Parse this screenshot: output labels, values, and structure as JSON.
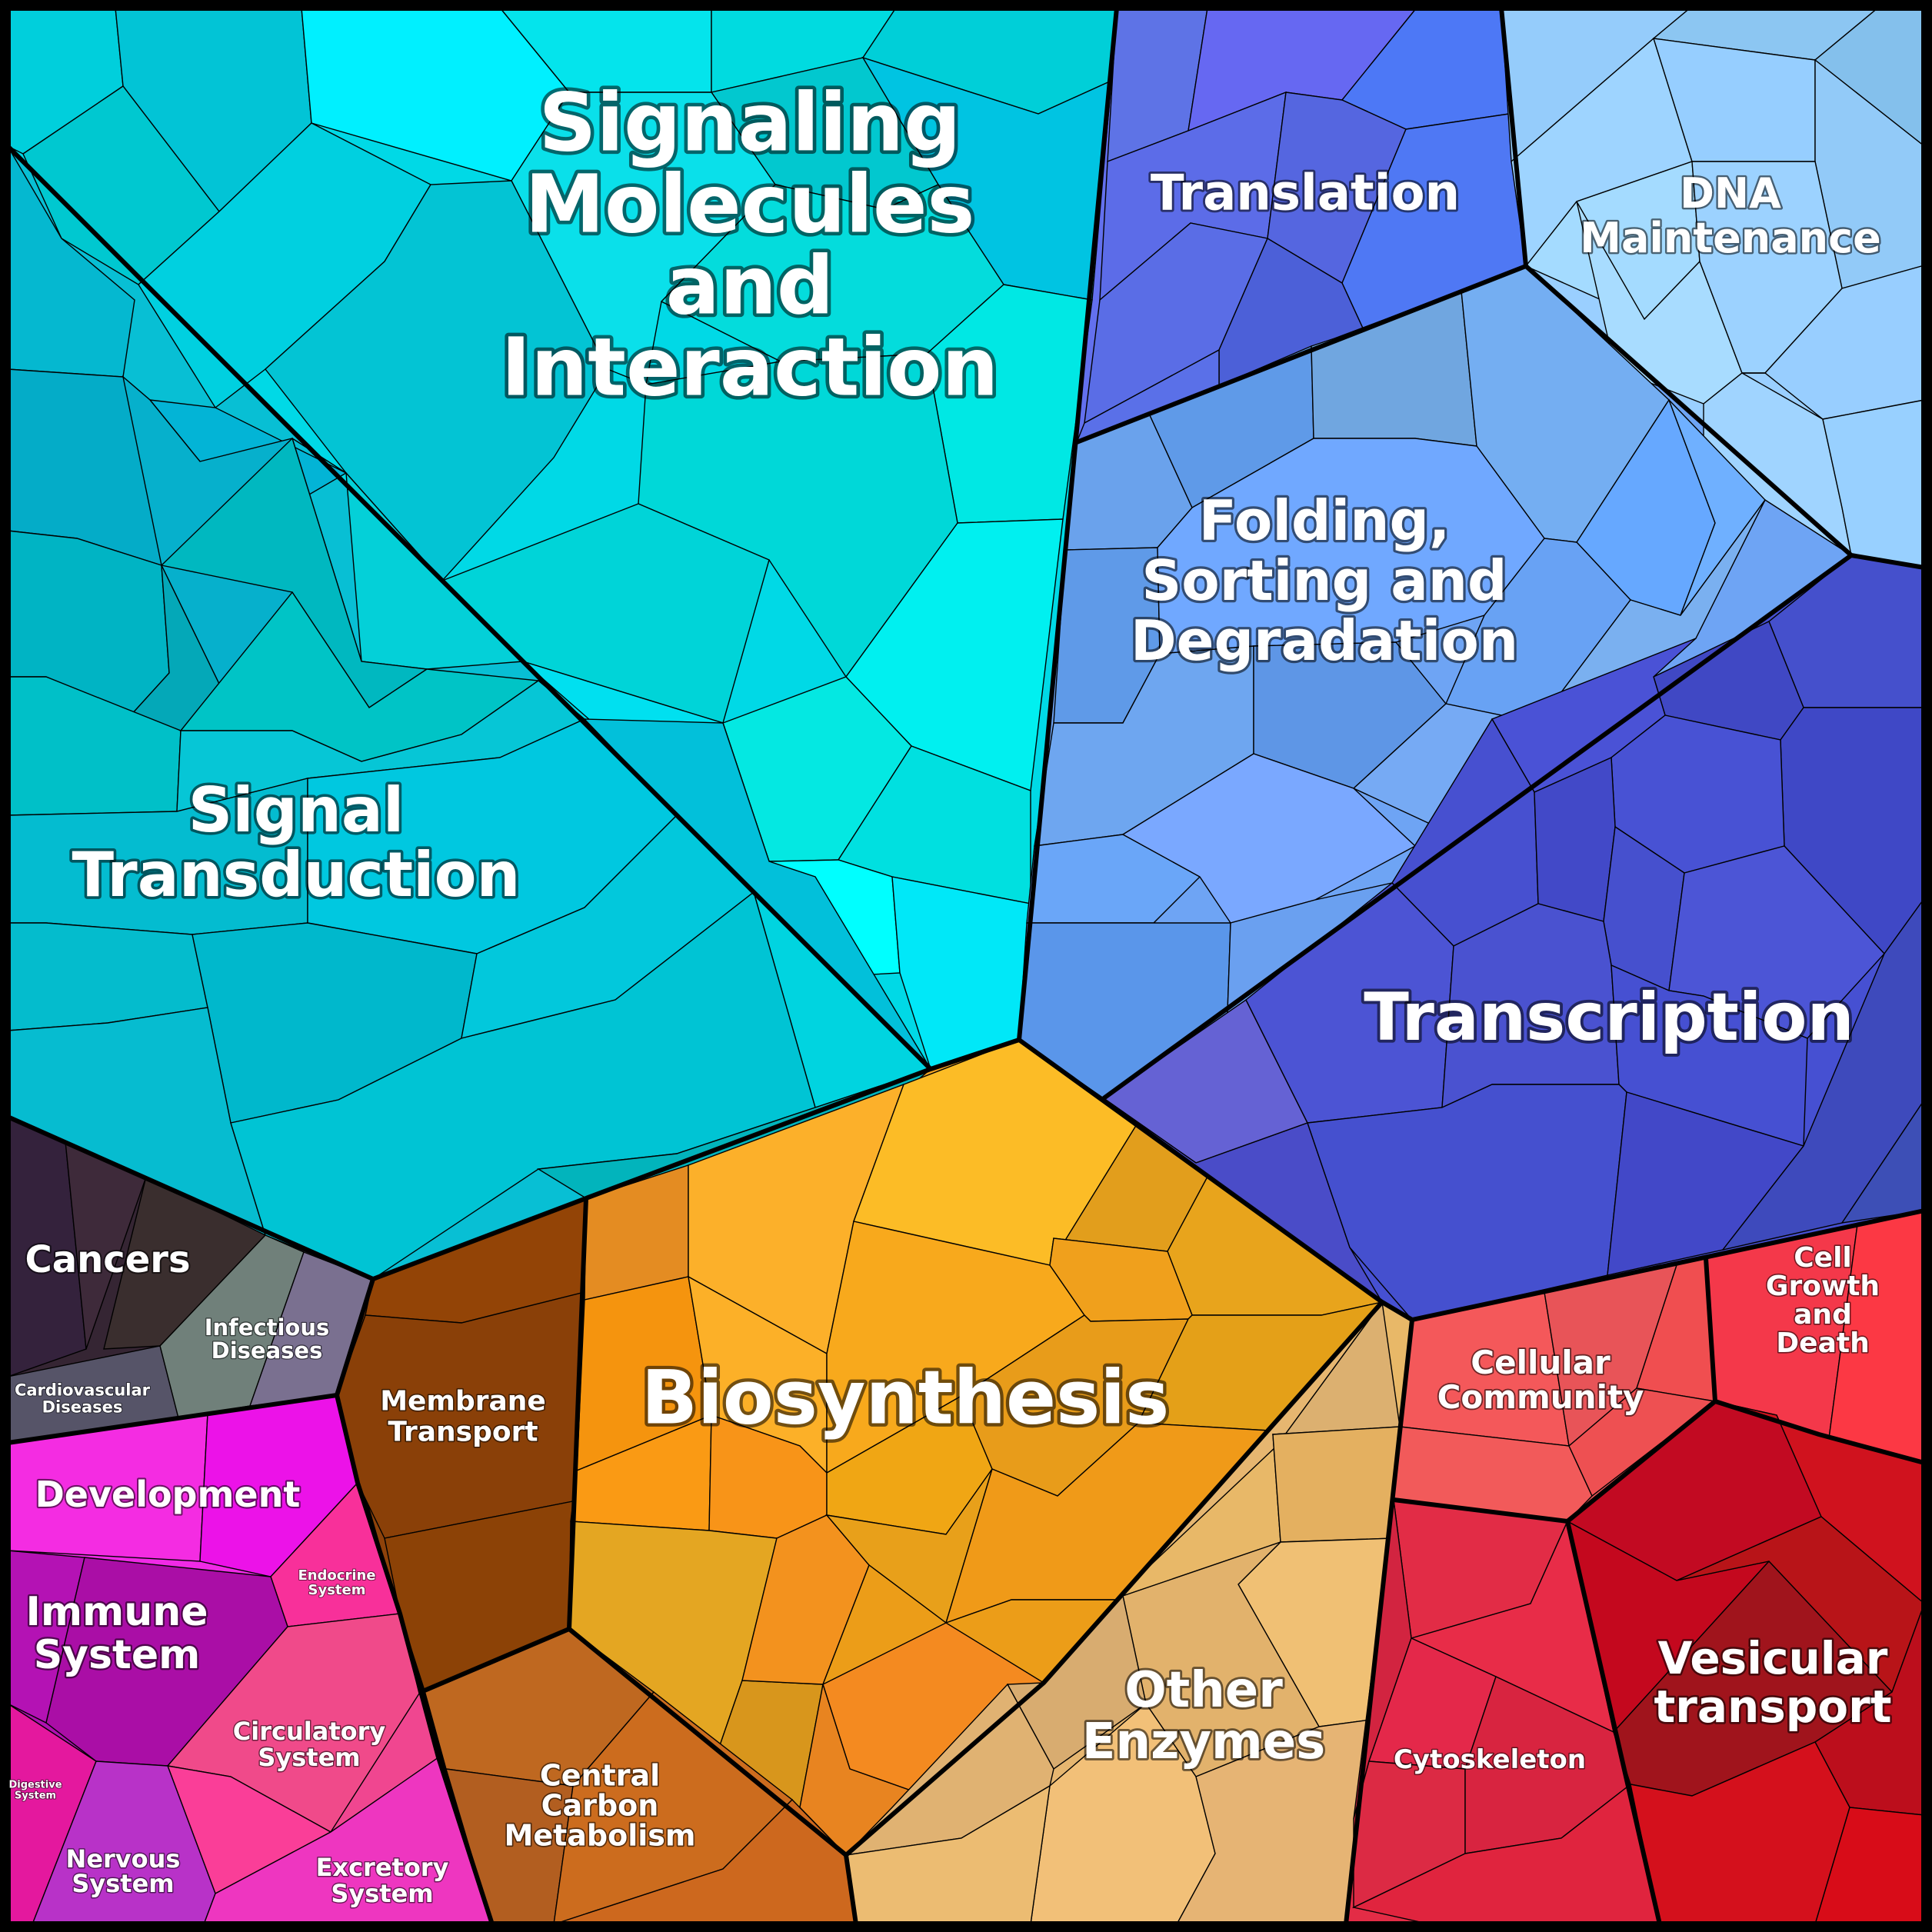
{
  "diagram": {
    "regions": [
      {
        "id": "signaling",
        "label": "Signaling Molecules and Interaction",
        "color": "#00d9e6"
      },
      {
        "id": "signal-transduction",
        "label": "Signal Transduction",
        "color": "#08bfd4"
      },
      {
        "id": "translation",
        "label": "Translation",
        "color": "#6370ee"
      },
      {
        "id": "dna-maintenance",
        "label": "DNA Maintenance",
        "color": "#9acfff"
      },
      {
        "id": "folding",
        "label": "Folding, Sorting and Degradation",
        "color": "#6ea4f4"
      },
      {
        "id": "transcription",
        "label": "Transcription",
        "color": "#4650d2"
      },
      {
        "id": "cancers",
        "label": "Cancers",
        "color": "#352533"
      },
      {
        "id": "infectious-diseases",
        "label": "Infectious Diseases",
        "color": "#6e7a72"
      },
      {
        "id": "cardiovascular-diseases",
        "label": "Cardiovascular Diseases",
        "color": "#565363"
      },
      {
        "id": "development",
        "label": "Development",
        "color": "#f02ae6"
      },
      {
        "id": "endocrine-system",
        "label": "Endocrine System",
        "color": "#f8309a"
      },
      {
        "id": "immune-system",
        "label": "Immune System",
        "color": "#b010b0"
      },
      {
        "id": "circulatory-system",
        "label": "Circulatory System",
        "color": "#f04690"
      },
      {
        "id": "digestive-system",
        "label": "Digestive System",
        "color": "#e01ab0"
      },
      {
        "id": "nervous-system",
        "label": "Nervous System",
        "color": "#b62fc4"
      },
      {
        "id": "excretory-system",
        "label": "Excretory System",
        "color": "#ec34c4"
      },
      {
        "id": "membrane-transport",
        "label": "Membrane Transport",
        "color": "#8e420a"
      },
      {
        "id": "biosynthesis",
        "label": "Biosynthesis",
        "color": "#f5a623"
      },
      {
        "id": "central-carbon",
        "label": "Central Carbon Metabolism",
        "color": "#c96a1e"
      },
      {
        "id": "other-enzymes",
        "label": "Other Enzymes",
        "color": "#e6b670"
      },
      {
        "id": "cellular-community",
        "label": "Cellular Community",
        "color": "#f0545a"
      },
      {
        "id": "cell-growth",
        "label": "Cell Growth and Death",
        "color": "#f43a4c"
      },
      {
        "id": "cytoskeleton",
        "label": "Cytoskeleton",
        "color": "#e32c46"
      },
      {
        "id": "vesicular-transport",
        "label": "Vesicular transport",
        "color": "#c8081c"
      }
    ]
  }
}
